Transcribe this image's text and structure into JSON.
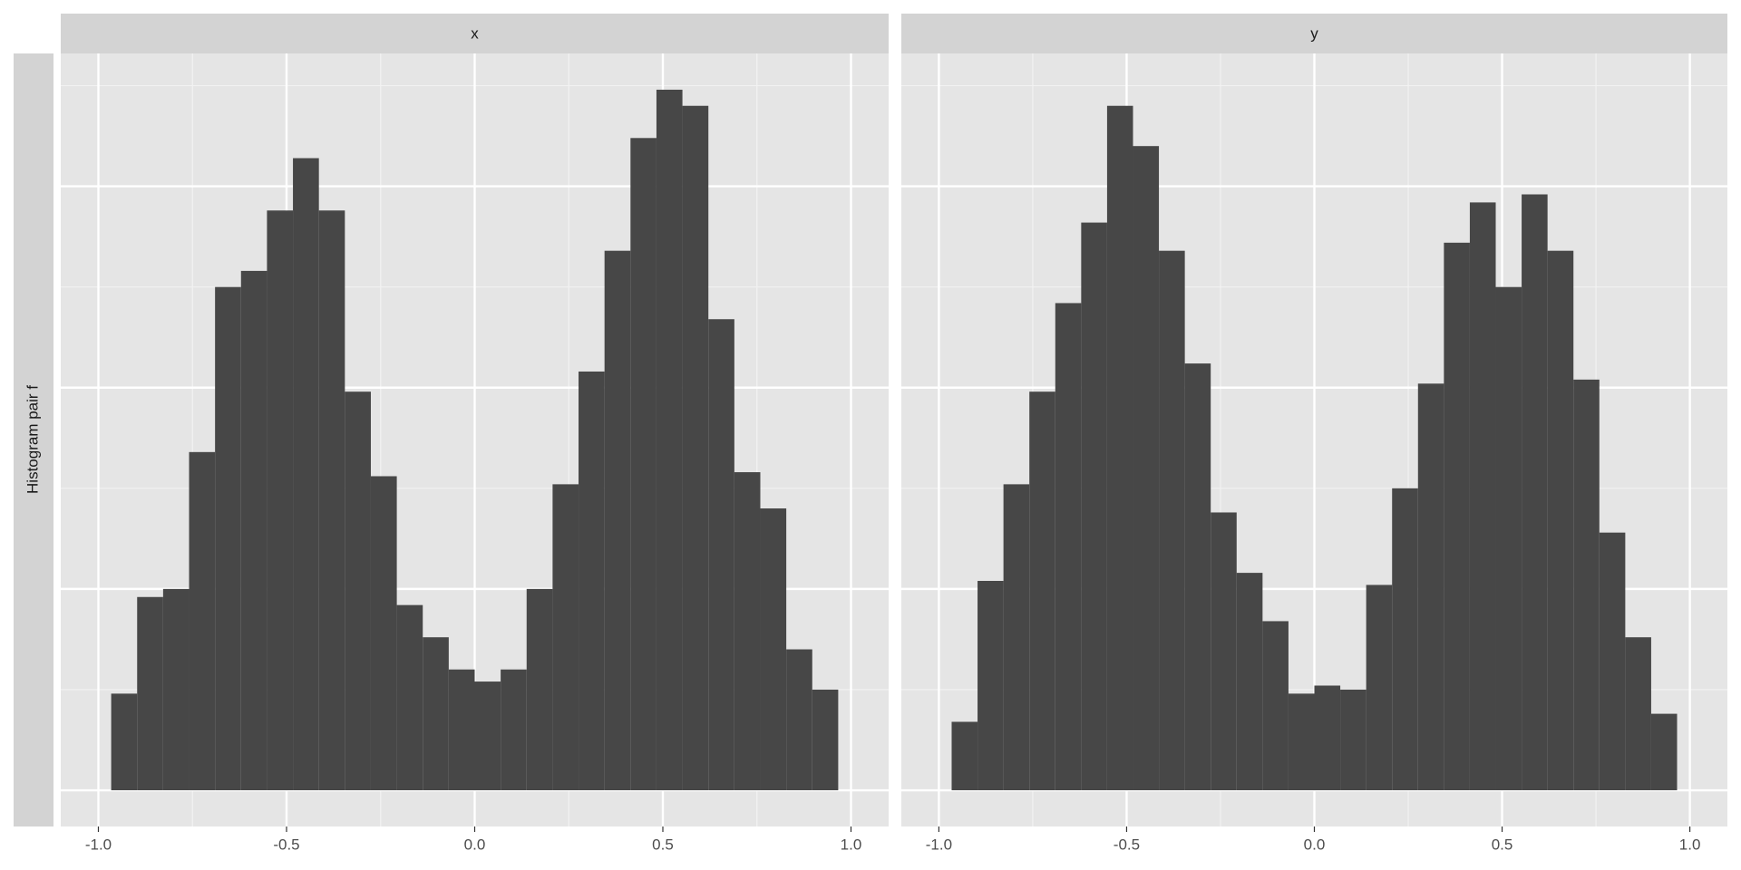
{
  "chart_data": [
    {
      "type": "histogram",
      "facet": "x",
      "ylabel": "Histogram pair f",
      "color": "#474747",
      "bins": [
        -0.966,
        -0.897,
        -0.828,
        -0.759,
        -0.69,
        -0.621,
        -0.552,
        -0.483,
        -0.414,
        -0.345,
        -0.276,
        -0.207,
        -0.138,
        -0.069,
        0,
        0.069,
        0.138,
        0.207,
        0.276,
        0.345,
        0.414,
        0.483,
        0.552,
        0.621,
        0.69,
        0.759,
        0.828,
        0.897,
        0.966
      ],
      "values": [
        0.48,
        0.96,
        1.0,
        1.68,
        2.5,
        2.58,
        2.88,
        3.14,
        2.88,
        1.98,
        1.56,
        0.92,
        0.76,
        0.6,
        0.54,
        0.6,
        1.0,
        1.52,
        2.08,
        2.68,
        3.24,
        3.48,
        3.4,
        2.34,
        1.58,
        1.4,
        0.7,
        0.5
      ],
      "xlim": [
        -1.1,
        1.1
      ],
      "ylim": [
        -0.18,
        3.66
      ],
      "xticks": [
        {
          "value": -1,
          "label": "-1.0"
        },
        -0.5,
        {
          "value": 0,
          "label": "0.0"
        },
        0.5,
        {
          "value": 1,
          "label": "1.0"
        }
      ],
      "xminor": [
        -0.75,
        -0.25,
        0.25,
        0.75
      ],
      "ygrid": [
        0,
        1,
        2,
        3
      ],
      "yminor": [
        0.5,
        1.5,
        2.5,
        3.5
      ]
    },
    {
      "type": "histogram",
      "facet": "y",
      "color": "#474747",
      "bins": [
        -0.966,
        -0.897,
        -0.828,
        -0.759,
        -0.69,
        -0.621,
        -0.552,
        -0.483,
        -0.414,
        -0.345,
        -0.276,
        -0.207,
        -0.138,
        -0.069,
        0,
        0.069,
        0.138,
        0.207,
        0.276,
        0.345,
        0.414,
        0.483,
        0.552,
        0.621,
        0.69,
        0.759,
        0.828,
        0.897,
        0.966
      ],
      "values": [
        0.34,
        1.04,
        1.52,
        1.98,
        2.42,
        2.82,
        3.4,
        3.2,
        2.68,
        2.12,
        1.38,
        1.08,
        0.84,
        0.48,
        0.52,
        0.5,
        1.02,
        1.5,
        2.02,
        2.72,
        2.92,
        2.5,
        2.96,
        2.68,
        2.04,
        1.28,
        0.76,
        0.38
      ],
      "xlim": [
        -1.1,
        1.1
      ],
      "ylim": [
        -0.18,
        3.66
      ],
      "xticks": [
        {
          "value": -1,
          "label": "-1.0"
        },
        -0.5,
        {
          "value": 0,
          "label": "0.0"
        },
        0.5,
        {
          "value": 1,
          "label": "1.0"
        }
      ],
      "xminor": [
        -0.75,
        -0.25,
        0.25,
        0.75
      ],
      "ygrid": [
        0,
        1,
        2,
        3
      ],
      "yminor": [
        0.5,
        1.5,
        2.5,
        3.5
      ]
    }
  ]
}
